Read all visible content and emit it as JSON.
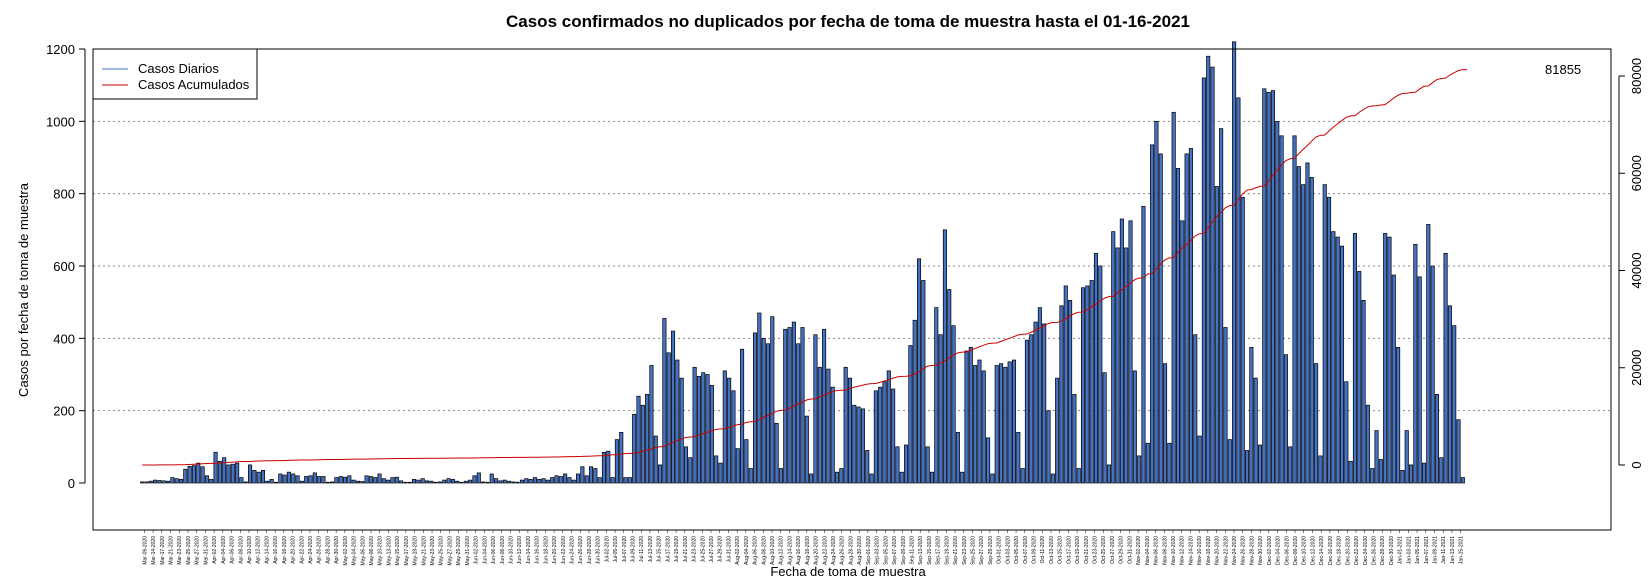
{
  "chart_data": {
    "type": "bar",
    "title": "Casos confirmados no duplicados por fecha de toma de muestra hasta el 01-16-2021",
    "xlabel": "Fecha de toma de muestra",
    "ylabel": "Casos por fecha de toma de muestra",
    "ylim": [
      0,
      1200
    ],
    "y_ticks": [
      0,
      200,
      400,
      600,
      800,
      1000,
      1200
    ],
    "y2lim": [
      -3000,
      85000
    ],
    "y2_ticks": [
      0,
      20000,
      40000,
      60000,
      80000
    ],
    "grid": "horizontal dotted",
    "legend": {
      "placement": "top-left",
      "entries": [
        {
          "label": "Casos Diarios",
          "color": "#4472c4"
        },
        {
          "label": "Casos Acumulados",
          "color": "#cc0000"
        }
      ]
    },
    "annotation": "81855",
    "colors": {
      "bar_fill": "#4472c4",
      "bar_stroke": "#000000",
      "cumulative_line": "#cc0000"
    },
    "date_labels": [
      "Mar-09-2020",
      "Mar-14-2020",
      "Mar-17-2020",
      "Mar-21-2020",
      "Mar-23-2020",
      "Mar-25-2020",
      "Mar-27-2020",
      "Mar-31-2020",
      "Apr-02-2020",
      "Apr-04-2020",
      "Apr-06-2020",
      "Apr-08-2020",
      "Apr-10-2020",
      "Apr-12-2020",
      "Apr-14-2020",
      "Apr-16-2020",
      "Apr-18-2020",
      "Apr-20-2020",
      "Apr-22-2020",
      "Apr-24-2020",
      "Apr-26-2020",
      "Apr-28-2020",
      "Apr-30-2020",
      "May-02-2020",
      "May-04-2020",
      "May-06-2020",
      "May-08-2020",
      "May-10-2020",
      "May-13-2020",
      "May-15-2020",
      "May-17-2020",
      "May-19-2020",
      "May-21-2020",
      "May-23-2020",
      "May-25-2020",
      "May-27-2020",
      "May-29-2020",
      "May-31-2020",
      "Jun-02-2020",
      "Jun-04-2020",
      "Jun-06-2020",
      "Jun-08-2020",
      "Jun-10-2020",
      "Jun-12-2020",
      "Jun-14-2020",
      "Jun-16-2020",
      "Jun-18-2020",
      "Jun-20-2020",
      "Jun-22-2020",
      "Jun-24-2020",
      "Jun-26-2020",
      "Jun-28-2020",
      "Jun-30-2020",
      "Jul-02-2020",
      "Jul-05-2020",
      "Jul-07-2020",
      "Jul-09-2020",
      "Jul-11-2020",
      "Jul-13-2020",
      "Jul-15-2020",
      "Jul-17-2020",
      "Jul-19-2020",
      "Jul-21-2020",
      "Jul-23-2020",
      "Jul-25-2020",
      "Jul-27-2020",
      "Jul-29-2020",
      "Jul-31-2020",
      "Aug-02-2020",
      "Aug-04-2020",
      "Aug-06-2020",
      "Aug-08-2020",
      "Aug-10-2020",
      "Aug-12-2020",
      "Aug-14-2020",
      "Aug-16-2020",
      "Aug-18-2020",
      "Aug-20-2020",
      "Aug-22-2020",
      "Aug-24-2020",
      "Aug-26-2020",
      "Aug-28-2020",
      "Aug-30-2020",
      "Sep-01-2020",
      "Sep-03-2020",
      "Sep-05-2020",
      "Sep-07-2020",
      "Sep-09-2020",
      "Sep-11-2020",
      "Sep-13-2020",
      "Sep-15-2020",
      "Sep-17-2020",
      "Sep-19-2020",
      "Sep-21-2020",
      "Sep-23-2020",
      "Sep-25-2020",
      "Sep-27-2020",
      "Sep-29-2020",
      "Oct-01-2020",
      "Oct-03-2020",
      "Oct-05-2020",
      "Oct-07-2020",
      "Oct-09-2020",
      "Oct-11-2020",
      "Oct-13-2020",
      "Oct-15-2020",
      "Oct-17-2020",
      "Oct-19-2020",
      "Oct-21-2020",
      "Oct-23-2020",
      "Oct-25-2020",
      "Oct-27-2020",
      "Oct-29-2020",
      "Oct-31-2020",
      "Nov-02-2020",
      "Nov-04-2020",
      "Nov-06-2020",
      "Nov-08-2020",
      "Nov-10-2020",
      "Nov-12-2020",
      "Nov-14-2020",
      "Nov-16-2020",
      "Nov-18-2020",
      "Nov-20-2020",
      "Nov-22-2020",
      "Nov-24-2020",
      "Nov-26-2020",
      "Nov-28-2020",
      "Nov-30-2020",
      "Dec-02-2020",
      "Dec-04-2020",
      "Dec-06-2020",
      "Dec-08-2020",
      "Dec-10-2020",
      "Dec-12-2020",
      "Dec-14-2020",
      "Dec-16-2020",
      "Dec-18-2020",
      "Dec-20-2020",
      "Dec-22-2020",
      "Dec-24-2020",
      "Dec-26-2020",
      "Dec-28-2020",
      "Dec-30-2020",
      "Jan-01-2021",
      "Jan-03-2021",
      "Jan-05-2021",
      "Jan-07-2021",
      "Jan-09-2021",
      "Jan-11-2021",
      "Jan-13-2021",
      "Jan-15-2021"
    ],
    "values": [
      3,
      3,
      5,
      8,
      7,
      6,
      5,
      15,
      12,
      10,
      38,
      46,
      48,
      55,
      45,
      20,
      10,
      85,
      60,
      70,
      50,
      52,
      55,
      15,
      3,
      50,
      35,
      30,
      35,
      5,
      10,
      2,
      25,
      22,
      30,
      25,
      20,
      5,
      18,
      20,
      28,
      18,
      18,
      2,
      3,
      15,
      18,
      16,
      20,
      8,
      5,
      4,
      20,
      18,
      15,
      25,
      12,
      8,
      15,
      16,
      6,
      2,
      2,
      10,
      8,
      12,
      6,
      5,
      2,
      3,
      8,
      12,
      10,
      5,
      2,
      5,
      8,
      20,
      28,
      3,
      2,
      25,
      12,
      6,
      8,
      5,
      3,
      2,
      8,
      12,
      10,
      15,
      10,
      12,
      8,
      15,
      20,
      18,
      25,
      15,
      8,
      25,
      45,
      20,
      45,
      40,
      15,
      85,
      88,
      15,
      120,
      140,
      15,
      15,
      190,
      240,
      215,
      245,
      325,
      130,
      50,
      455,
      360,
      420,
      340,
      290,
      100,
      70,
      320,
      295,
      305,
      300,
      270,
      75,
      55,
      310,
      290,
      255,
      95,
      370,
      120,
      40,
      415,
      470,
      400,
      385,
      460,
      165,
      40,
      425,
      430,
      445,
      385,
      430,
      185,
      25,
      410,
      320,
      425,
      315,
      265,
      30,
      40,
      320,
      290,
      215,
      210,
      205,
      90,
      25,
      255,
      265,
      280,
      310,
      260,
      100,
      30,
      105,
      380,
      450,
      620,
      560,
      100,
      30,
      485,
      410,
      700,
      535,
      435,
      140,
      30,
      365,
      375,
      325,
      340,
      310,
      125,
      25,
      325,
      330,
      320,
      335,
      340,
      140,
      40,
      395,
      410,
      445,
      485,
      440,
      200,
      25,
      290,
      490,
      545,
      505,
      245,
      40,
      540,
      545,
      560,
      635,
      600,
      305,
      50,
      695,
      650,
      730,
      650,
      725,
      310,
      75,
      765,
      110,
      935,
      1000,
      910,
      330,
      110,
      1025,
      870,
      725,
      910,
      925,
      410,
      130,
      1120,
      1180,
      1150,
      820,
      980,
      430,
      120,
      1220,
      1065,
      790,
      90,
      375,
      290,
      105,
      1090,
      1080,
      1085,
      1000,
      960,
      355,
      100,
      960,
      875,
      825,
      885,
      845,
      330,
      75,
      825,
      790,
      695,
      680,
      655,
      280,
      60,
      690,
      585,
      505,
      215,
      40,
      145,
      65,
      690,
      680,
      575,
      375,
      35,
      145,
      50,
      660,
      570,
      55,
      715,
      600,
      245,
      70,
      635,
      490,
      435,
      175,
      15
    ],
    "cumulative": [
      0,
      3,
      6,
      11,
      19,
      26,
      32,
      37,
      52,
      64,
      74,
      112,
      158,
      206,
      261,
      306,
      326,
      336,
      421,
      481,
      551,
      601,
      653,
      708,
      723,
      726,
      776,
      811,
      841,
      876,
      881,
      891,
      893,
      918,
      940,
      970,
      995,
      1015,
      1020,
      1038,
      1058,
      1086,
      1104,
      1122,
      1124,
      1127,
      1142,
      1160,
      1176,
      1196,
      1204,
      1209,
      1213,
      1233,
      1251,
      1266,
      1291,
      1303,
      1311,
      1326,
      1342,
      1348,
      1350,
      1352,
      1362,
      1370,
      1382,
      1388,
      1393,
      1395,
      1398,
      1406,
      1418,
      1428,
      1433,
      1435,
      1440,
      1448,
      1468,
      1496,
      1499,
      1501,
      1526,
      1538,
      1544,
      1552,
      1557,
      1560,
      1562,
      1570,
      1582,
      1592,
      1607,
      1617,
      1629,
      1637,
      1652,
      1672,
      1690,
      1715,
      1730,
      1738,
      1763,
      1808,
      1828,
      1873,
      1913,
      1928,
      2013,
      2101,
      2116,
      2236,
      2376,
      2391,
      2406,
      2596,
      2836,
      3051,
      3296,
      3621,
      3751,
      3801,
      4256,
      4616,
      5036,
      5376,
      5666,
      5766,
      5836,
      6156,
      6451,
      6756,
      7056,
      7326,
      7401,
      7456,
      7766,
      8056,
      8311,
      8406,
      8776,
      8896,
      8936,
      9351,
      9821,
      10221,
      10606,
      11066,
      11231,
      11271,
      11696,
      12126,
      12571,
      12956,
      13386,
      13571,
      13596,
      14006,
      14326,
      14751,
      15066,
      15331,
      15361,
      15401,
      15721,
      16011,
      16226,
      16436,
      16641,
      16731,
      16756,
      17011,
      17276,
      17556,
      17866,
      18126,
      18226,
      18256,
      18361,
      18741,
      19191,
      19811,
      20371,
      20471,
      20501,
      20986,
      21396,
      22096,
      22631,
      23066,
      23206,
      23236,
      23601,
      23976,
      24301,
      24641,
      24951,
      25076,
      25101,
      25426,
      25756,
      26076,
      26411,
      26751,
      26891,
      26931,
      27326,
      27736,
      28181,
      28666,
      29106,
      29306,
      29331,
      29621,
      30111,
      30656,
      31161,
      31406,
      31446,
      31986,
      32531,
      33091,
      33726,
      34326,
      34631,
      34681,
      35376,
      36026,
      36756,
      37406,
      38131,
      38441,
      38516,
      39281,
      39391,
      40326,
      41326,
      42236,
      42566,
      42676,
      43701,
      44571,
      45296,
      46206,
      47131,
      47541,
      47671,
      48791,
      49971,
      51121,
      51941,
      52921,
      53351,
      53471,
      54691,
      55756,
      56546,
      56636,
      57011,
      57301,
      57406,
      58496,
      59576,
      60661,
      61661,
      62621,
      62976,
      63076,
      64036,
      64911,
      65736,
      66621,
      67466,
      67796,
      67871,
      68696,
      69486,
      70181,
      70861,
      71516,
      71796,
      71856,
      72546,
      73131,
      73636,
      73851,
      73891,
      74036,
      74101,
      74791,
      75471,
      76046,
      76421,
      76456,
      76601,
      76651,
      77311,
      77881,
      77936,
      78651,
      79251,
      79496,
      79566,
      80201,
      80691,
      81126,
      81301,
      81316
    ]
  }
}
